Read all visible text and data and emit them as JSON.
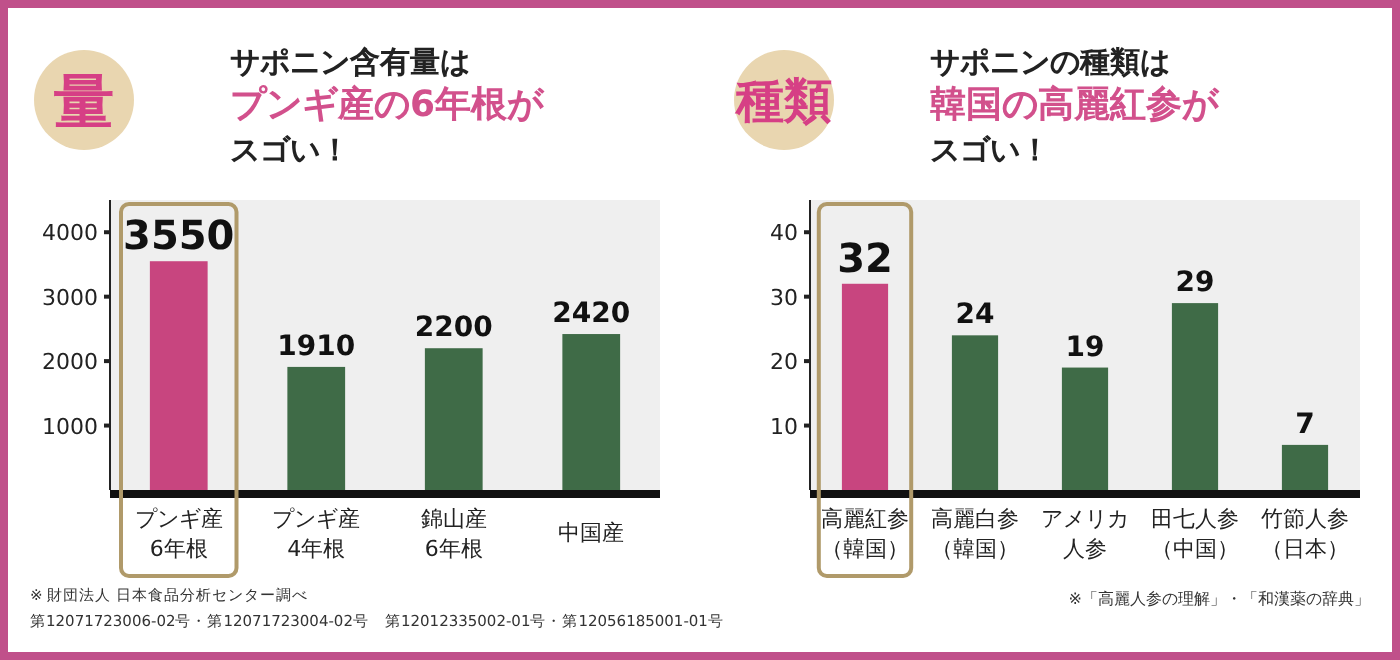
{
  "chart_data": [
    {
      "type": "bar",
      "title": "サポニン含有量はプンギ産の6年根がスゴい！",
      "categories": [
        "プンギ産6年根",
        "プンギ産4年根",
        "錦山産6年根",
        "中国産"
      ],
      "values": [
        3550,
        1910,
        2200,
        2420
      ],
      "colors": [
        "#c8457f",
        "#3f6b47",
        "#3f6b47",
        "#3f6b47"
      ],
      "ylim": [
        0,
        4500
      ],
      "yticks": [
        1000,
        2000,
        3000,
        4000
      ],
      "data_labels": true,
      "annotations": [
        "量",
        "※ 財団法人 日本食品分析センター調べ",
        "第12071723006-02号・第12071723004-02号　第12012335002-01号・第12056185001-01号"
      ]
    },
    {
      "type": "bar",
      "title": "サポニンの種類は韓国の高麗紅参がスゴい！",
      "categories": [
        "高麗紅参（韓国）",
        "高麗白参（韓国）",
        "アメリカ人参",
        "田七人参（中国）",
        "竹節人参（日本）"
      ],
      "values": [
        32,
        24,
        19,
        29,
        7
      ],
      "colors": [
        "#c8457f",
        "#3f6b47",
        "#3f6b47",
        "#3f6b47",
        "#3f6b47"
      ],
      "ylim": [
        0,
        45
      ],
      "yticks": [
        10,
        20,
        30,
        40
      ],
      "data_labels": true,
      "annotations": [
        "種類",
        "※「高麗人参の理解」・「和漢薬の辞典」"
      ]
    }
  ]
}
